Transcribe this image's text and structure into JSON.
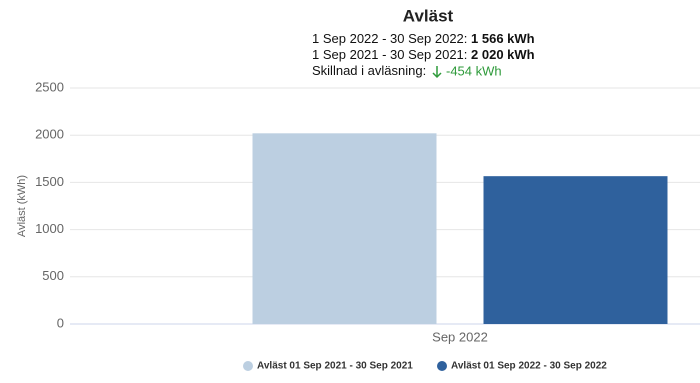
{
  "chart_data": {
    "type": "bar",
    "title": "Avläst",
    "summary": [
      {
        "label": "1 Sep 2022 - 30 Sep 2022:",
        "value": "1 566 kWh"
      },
      {
        "label": "1 Sep 2021 - 30 Sep 2021:",
        "value": "2 020 kWh"
      },
      {
        "label": "Skillnad i avläsning:",
        "value": "-454 kWh"
      }
    ],
    "y_label": "Avläst (kWh)",
    "categories": [
      "Sep 2022"
    ],
    "series": [
      {
        "name": "Avläst 01 Sep 2021 - 30 Sep 2021",
        "color": "#bccfe1",
        "values": [
          2020
        ]
      },
      {
        "name": "Avläst 01 Sep 2022 - 30 Sep 2022",
        "color": "#2f619d",
        "values": [
          1566
        ]
      }
    ],
    "ylim": [
      0,
      2500
    ],
    "yticks": [
      0,
      500,
      1000,
      1500,
      2000,
      2500
    ],
    "grid": true
  }
}
